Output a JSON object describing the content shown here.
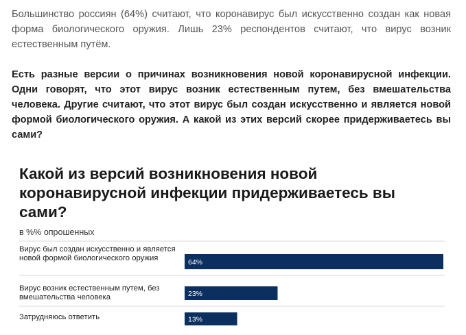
{
  "article": {
    "lead": "Большинство россиян (64%) считают, что коронавирус был искусственно создан как новая форма биологического оружия. Лишь 23% респондентов считают, что вирус возник естественным путём.",
    "question": "Есть разные версии о причинах возникновения новой коронавирусной инфекции. Одни говорят, что этот вирус возник естественным путем, без вмешательства человека. Другие считают, что этот вирус был создан искусственно и является новой формой биологического оружия. А какой из этих версий скорее придерживаетесь вы сами?"
  },
  "chart_data": {
    "type": "bar",
    "orientation": "horizontal",
    "title": "Какой из версий возникновения новой коронавирусной инфекции придерживаетесь вы сами?",
    "subtitle": "в %% опрошенных",
    "categories": [
      "Вирус был создан искусственно и является новой формой биологического оружия",
      "Вирус возник естественным путем, без вмешательства человека",
      "Затрудняюсь ответить"
    ],
    "values": [
      64,
      23,
      13
    ],
    "value_labels": [
      "64%",
      "23%",
      "13%"
    ],
    "xlim": [
      0,
      64
    ],
    "bar_color": "#0b2f5e",
    "grid": false
  }
}
